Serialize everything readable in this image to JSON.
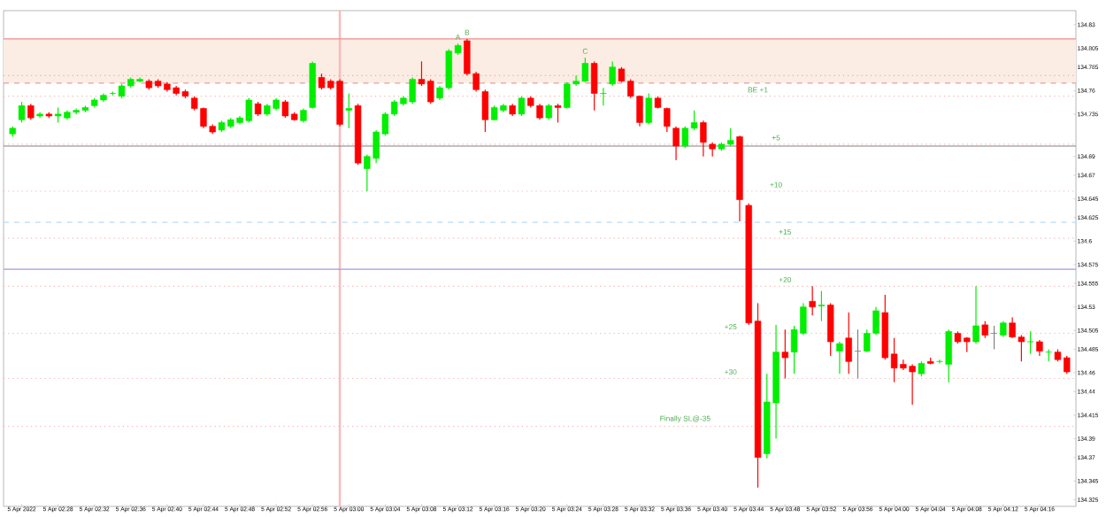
{
  "chart_data": {
    "type": "candlestick",
    "x": [
      "2022-04-05T02:23",
      "2022-04-05T02:24",
      "2022-04-05T02:25",
      "2022-04-05T02:26",
      "2022-04-05T02:27",
      "2022-04-05T02:28",
      "2022-04-05T02:29",
      "2022-04-05T02:30",
      "2022-04-05T02:31",
      "2022-04-05T02:32",
      "2022-04-05T02:33",
      "2022-04-05T02:34",
      "2022-04-05T02:35",
      "2022-04-05T02:36",
      "2022-04-05T02:37",
      "2022-04-05T02:38",
      "2022-04-05T02:39",
      "2022-04-05T02:40",
      "2022-04-05T02:41",
      "2022-04-05T02:42",
      "2022-04-05T02:43",
      "2022-04-05T02:44",
      "2022-04-05T02:45",
      "2022-04-05T02:46",
      "2022-04-05T02:47",
      "2022-04-05T02:48",
      "2022-04-05T02:49",
      "2022-04-05T02:50",
      "2022-04-05T02:51",
      "2022-04-05T02:52",
      "2022-04-05T02:53",
      "2022-04-05T02:54",
      "2022-04-05T02:55",
      "2022-04-05T02:56",
      "2022-04-05T02:57",
      "2022-04-05T02:58",
      "2022-04-05T02:59",
      "2022-04-05T03:00",
      "2022-04-05T03:01",
      "2022-04-05T03:02",
      "2022-04-05T03:03",
      "2022-04-05T03:04",
      "2022-04-05T03:05",
      "2022-04-05T03:06",
      "2022-04-05T03:07",
      "2022-04-05T03:08",
      "2022-04-05T03:09",
      "2022-04-05T03:10",
      "2022-04-05T03:11",
      "2022-04-05T03:12",
      "2022-04-05T03:13",
      "2022-04-05T03:14",
      "2022-04-05T03:15",
      "2022-04-05T03:16",
      "2022-04-05T03:17",
      "2022-04-05T03:18",
      "2022-04-05T03:19",
      "2022-04-05T03:20",
      "2022-04-05T03:21",
      "2022-04-05T03:22",
      "2022-04-05T03:23",
      "2022-04-05T03:24",
      "2022-04-05T03:25",
      "2022-04-05T03:26",
      "2022-04-05T03:27",
      "2022-04-05T03:28",
      "2022-04-05T03:29",
      "2022-04-05T03:30",
      "2022-04-05T03:31",
      "2022-04-05T03:32",
      "2022-04-05T03:33",
      "2022-04-05T03:34",
      "2022-04-05T03:35",
      "2022-04-05T03:36",
      "2022-04-05T03:37",
      "2022-04-05T03:38",
      "2022-04-05T03:39",
      "2022-04-05T03:40",
      "2022-04-05T03:41",
      "2022-04-05T03:42",
      "2022-04-05T03:43",
      "2022-04-05T03:44",
      "2022-04-05T03:45",
      "2022-04-05T03:46",
      "2022-04-05T03:47",
      "2022-04-05T03:48",
      "2022-04-05T03:49",
      "2022-04-05T03:50",
      "2022-04-05T03:51",
      "2022-04-05T03:52",
      "2022-04-05T03:53",
      "2022-04-05T03:54",
      "2022-04-05T03:55",
      "2022-04-05T03:56",
      "2022-04-05T03:57",
      "2022-04-05T03:58",
      "2022-04-05T03:59",
      "2022-04-05T04:00",
      "2022-04-05T04:01",
      "2022-04-05T04:02",
      "2022-04-05T04:03",
      "2022-04-05T04:04",
      "2022-04-05T04:05",
      "2022-04-05T04:06",
      "2022-04-05T04:07",
      "2022-04-05T04:08",
      "2022-04-05T04:09",
      "2022-04-05T04:10",
      "2022-04-05T04:11",
      "2022-04-05T04:12",
      "2022-04-05T04:13",
      "2022-04-05T04:14",
      "2022-04-05T04:15",
      "2022-04-05T04:16",
      "2022-04-05T04:17",
      "2022-04-05T04:18",
      "2022-04-05T04:19"
    ],
    "ohlc": [
      [
        134.714,
        134.722,
        134.711,
        134.72
      ],
      [
        134.729,
        134.748,
        134.726,
        134.744
      ],
      [
        134.744,
        134.746,
        134.729,
        134.731
      ],
      [
        134.733,
        134.737,
        134.731,
        134.735
      ],
      [
        134.735,
        134.737,
        134.731,
        134.733
      ],
      [
        134.733,
        134.742,
        134.726,
        134.735
      ],
      [
        134.731,
        134.739,
        134.729,
        134.737
      ],
      [
        134.737,
        134.741,
        134.735,
        134.739
      ],
      [
        134.739,
        134.744,
        134.737,
        134.742
      ],
      [
        134.744,
        134.752,
        134.742,
        134.75
      ],
      [
        134.75,
        134.757,
        134.748,
        134.755
      ],
      [
        134.757,
        134.759,
        134.755,
        134.757
      ],
      [
        134.754,
        134.767,
        134.752,
        134.765
      ],
      [
        134.765,
        134.774,
        134.763,
        134.772
      ],
      [
        134.77,
        134.774,
        134.769,
        134.772
      ],
      [
        134.77,
        134.772,
        134.761,
        134.763
      ],
      [
        134.77,
        134.772,
        134.763,
        134.765
      ],
      [
        134.767,
        134.769,
        134.759,
        134.761
      ],
      [
        134.763,
        134.765,
        134.755,
        134.757
      ],
      [
        134.759,
        134.761,
        134.752,
        134.754
      ],
      [
        134.752,
        134.754,
        134.739,
        134.741
      ],
      [
        134.741,
        134.742,
        134.72,
        134.722
      ],
      [
        134.722,
        134.724,
        134.714,
        134.716
      ],
      [
        134.718,
        134.728,
        134.716,
        134.726
      ],
      [
        134.722,
        134.731,
        134.72,
        134.729
      ],
      [
        134.726,
        134.733,
        134.724,
        134.731
      ],
      [
        134.728,
        134.752,
        134.726,
        134.75
      ],
      [
        134.746,
        134.748,
        134.733,
        134.735
      ],
      [
        134.735,
        134.746,
        134.733,
        134.744
      ],
      [
        134.741,
        134.752,
        134.739,
        134.75
      ],
      [
        134.748,
        134.75,
        134.731,
        134.733
      ],
      [
        134.735,
        134.737,
        134.728,
        134.729
      ],
      [
        134.728,
        134.741,
        134.726,
        134.739
      ],
      [
        134.742,
        134.791,
        134.741,
        134.789
      ],
      [
        134.774,
        134.778,
        134.761,
        134.763
      ],
      [
        134.77,
        134.772,
        134.761,
        134.763
      ],
      [
        134.77,
        134.772,
        134.722,
        134.724
      ],
      [
        134.739,
        134.757,
        134.72,
        134.741
      ],
      [
        134.744,
        134.746,
        134.681,
        134.683
      ],
      [
        134.677,
        134.692,
        134.653,
        134.69
      ],
      [
        134.688,
        134.718,
        134.683,
        134.716
      ],
      [
        134.714,
        134.737,
        134.712,
        134.735
      ],
      [
        134.735,
        134.75,
        134.733,
        134.748
      ],
      [
        134.746,
        134.754,
        134.744,
        134.752
      ],
      [
        134.748,
        134.774,
        134.746,
        134.772
      ],
      [
        134.772,
        134.791,
        134.765,
        134.767
      ],
      [
        134.77,
        134.772,
        134.746,
        134.748
      ],
      [
        134.752,
        134.765,
        134.75,
        134.763
      ],
      [
        134.763,
        134.804,
        134.761,
        134.802
      ],
      [
        134.8,
        134.81,
        134.798,
        134.808
      ],
      [
        134.813,
        134.815,
        134.776,
        134.778
      ],
      [
        134.778,
        134.78,
        134.759,
        134.761
      ],
      [
        134.759,
        134.761,
        134.716,
        134.729
      ],
      [
        134.729,
        134.744,
        134.728,
        134.742
      ],
      [
        134.739,
        134.746,
        134.737,
        134.744
      ],
      [
        134.744,
        134.746,
        134.733,
        134.735
      ],
      [
        134.735,
        134.754,
        134.733,
        134.752
      ],
      [
        134.752,
        134.754,
        134.742,
        134.744
      ],
      [
        134.744,
        134.746,
        134.729,
        134.731
      ],
      [
        134.731,
        134.746,
        134.729,
        134.744
      ],
      [
        134.744,
        134.746,
        134.726,
        134.742
      ],
      [
        134.742,
        134.769,
        134.741,
        134.767
      ],
      [
        134.767,
        134.776,
        134.765,
        134.77
      ],
      [
        134.77,
        134.795,
        134.769,
        134.789
      ],
      [
        134.789,
        134.791,
        134.739,
        134.757
      ],
      [
        134.757,
        134.763,
        134.744,
        134.757
      ],
      [
        134.767,
        134.791,
        134.765,
        134.785
      ],
      [
        134.783,
        134.785,
        134.769,
        134.77
      ],
      [
        134.77,
        134.772,
        134.752,
        134.754
      ],
      [
        134.754,
        134.755,
        134.722,
        134.726
      ],
      [
        134.726,
        134.757,
        134.724,
        134.752
      ],
      [
        134.752,
        134.754,
        134.741,
        134.742
      ],
      [
        134.741,
        134.742,
        134.716,
        134.722
      ],
      [
        134.72,
        134.722,
        134.686,
        134.701
      ],
      [
        134.701,
        134.722,
        134.699,
        134.72
      ],
      [
        134.72,
        134.739,
        134.718,
        134.726
      ],
      [
        134.726,
        134.728,
        134.69,
        134.705
      ],
      [
        134.703,
        134.705,
        134.69,
        134.698
      ],
      [
        134.698,
        134.705,
        134.696,
        134.703
      ],
      [
        134.703,
        134.72,
        134.701,
        134.707
      ],
      [
        134.711,
        134.712,
        134.621,
        134.644
      ],
      [
        134.638,
        134.64,
        134.511,
        134.513
      ],
      [
        134.515,
        134.534,
        134.338,
        134.37
      ],
      [
        134.374,
        134.459,
        134.369,
        134.429
      ],
      [
        134.428,
        134.511,
        134.39,
        134.482
      ],
      [
        134.482,
        134.506,
        134.454,
        134.476
      ],
      [
        134.482,
        134.51,
        134.459,
        134.506
      ],
      [
        134.502,
        134.534,
        134.5,
        134.53
      ],
      [
        134.536,
        134.552,
        134.521,
        134.53
      ],
      [
        134.531,
        134.547,
        134.515,
        134.532
      ],
      [
        134.532,
        134.534,
        134.478,
        134.493
      ],
      [
        134.483,
        134.493,
        134.459,
        134.491
      ],
      [
        134.497,
        134.524,
        134.459,
        134.472
      ],
      [
        134.483,
        134.506,
        134.454,
        134.483
      ],
      [
        134.483,
        134.506,
        134.482,
        134.502
      ],
      [
        134.502,
        134.53,
        134.5,
        134.526
      ],
      [
        134.524,
        134.543,
        134.474,
        134.476
      ],
      [
        134.48,
        134.497,
        134.45,
        134.465
      ],
      [
        134.469,
        134.474,
        134.463,
        134.465
      ],
      [
        134.467,
        134.469,
        134.426,
        134.461
      ],
      [
        134.459,
        134.472,
        134.456,
        134.47
      ],
      [
        134.472,
        134.476,
        134.469,
        134.47
      ],
      [
        134.472,
        134.474,
        134.47,
        134.472
      ],
      [
        134.469,
        134.506,
        134.45,
        134.504
      ],
      [
        134.502,
        134.504,
        134.491,
        134.493
      ],
      [
        134.497,
        134.498,
        134.482,
        134.493
      ],
      [
        134.493,
        134.552,
        134.491,
        134.51
      ],
      [
        134.511,
        134.515,
        134.497,
        134.5
      ],
      [
        134.502,
        134.51,
        134.485,
        134.502
      ],
      [
        134.5,
        134.515,
        134.498,
        134.513
      ],
      [
        134.513,
        134.519,
        134.497,
        134.498
      ],
      [
        134.498,
        134.5,
        134.472,
        134.493
      ],
      [
        134.493,
        134.504,
        134.48,
        134.493
      ],
      [
        134.493,
        134.495,
        134.478,
        134.483
      ],
      [
        134.482,
        134.485,
        134.472,
        134.482
      ],
      [
        134.482,
        134.485,
        134.472,
        134.474
      ],
      [
        134.476,
        134.478,
        134.459,
        134.461
      ]
    ],
    "colors": [
      "#00ee00",
      "#00ee00",
      "#ff0000",
      "#00ee00",
      "#ff0000",
      "#00ee00",
      "#00ee00",
      "#00ee00",
      "#00ee00",
      "#00ee00",
      "#00ee00",
      "#00ee00",
      "#00ee00",
      "#00ee00",
      "#00ee00",
      "#ff0000",
      "#ff0000",
      "#ff0000",
      "#ff0000",
      "#ff0000",
      "#ff0000",
      "#ff0000",
      "#ff0000",
      "#00ee00",
      "#00ee00",
      "#00ee00",
      "#00ee00",
      "#ff0000",
      "#00ee00",
      "#00ee00",
      "#ff0000",
      "#ff0000",
      "#00ee00",
      "#00ee00",
      "#ff0000",
      "#ff0000",
      "#ff0000",
      "#00ee00",
      "#ff0000",
      "#00ee00",
      "#00ee00",
      "#00ee00",
      "#00ee00",
      "#00ee00",
      "#00ee00",
      "#ff0000",
      "#ff0000",
      "#00ee00",
      "#00ee00",
      "#00ee00",
      "#ff0000",
      "#ff0000",
      "#ff0000",
      "#00ee00",
      "#00ee00",
      "#ff0000",
      "#00ee00",
      "#ff0000",
      "#ff0000",
      "#00ee00",
      "#ff0000",
      "#00ee00",
      "#00ee00",
      "#00ee00",
      "#ff0000",
      "#00ee00",
      "#00ee00",
      "#ff0000",
      "#ff0000",
      "#ff0000",
      "#00ee00",
      "#ff0000",
      "#ff0000",
      "#ff0000",
      "#00ee00",
      "#00ee00",
      "#ff0000",
      "#ff0000",
      "#00ee00",
      "#00ee00",
      "#ff0000",
      "#ff0000",
      "#ff0000",
      "#00ee00",
      "#00ee00",
      "#ff0000",
      "#00ee00",
      "#00ee00",
      "#ff0000",
      "#00ee00",
      "#ff0000",
      "#00ee00",
      "#ff0000",
      "#808080",
      "#00ee00",
      "#00ee00",
      "#ff0000",
      "#ff0000",
      "#ff0000",
      "#ff0000",
      "#00ee00",
      "#ff0000",
      "#00ee00",
      "#00ee00",
      "#ff0000",
      "#ff0000",
      "#00ee00",
      "#ff0000",
      "#808080",
      "#00ee00",
      "#ff0000",
      "#ff0000",
      "#00ee00",
      "#ff0000",
      "#00ee00",
      "#ff0000",
      "#ff0000"
    ],
    "xlim": [
      "2022-04-05T02:22",
      "2022-04-05T04:20"
    ],
    "xticks": [
      {
        "value": "2022-04-05T02:24",
        "label": "5 Apr 2022"
      },
      {
        "value": "2022-04-05T02:28",
        "label": "5 Apr 02:28"
      },
      {
        "value": "2022-04-05T02:32",
        "label": "5 Apr 02:32"
      },
      {
        "value": "2022-04-05T02:36",
        "label": "5 Apr 02:36"
      },
      {
        "value": "2022-04-05T02:40",
        "label": "5 Apr 02:40"
      },
      {
        "value": "2022-04-05T02:44",
        "label": "5 Apr 02:44"
      },
      {
        "value": "2022-04-05T02:48",
        "label": "5 Apr 02:48"
      },
      {
        "value": "2022-04-05T02:52",
        "label": "5 Apr 02:52"
      },
      {
        "value": "2022-04-05T02:56",
        "label": "5 Apr 02:56"
      },
      {
        "value": "2022-04-05T03:00",
        "label": "5 Apr 03:00"
      },
      {
        "value": "2022-04-05T03:04",
        "label": "5 Apr 03:04"
      },
      {
        "value": "2022-04-05T03:08",
        "label": "5 Apr 03:08"
      },
      {
        "value": "2022-04-05T03:12",
        "label": "5 Apr 03:12"
      },
      {
        "value": "2022-04-05T03:16",
        "label": "5 Apr 03:16"
      },
      {
        "value": "2022-04-05T03:20",
        "label": "5 Apr 03:20"
      },
      {
        "value": "2022-04-05T03:24",
        "label": "5 Apr 03:24"
      },
      {
        "value": "2022-04-05T03:28",
        "label": "5 Apr 03:28"
      },
      {
        "value": "2022-04-05T03:32",
        "label": "5 Apr 03:32"
      },
      {
        "value": "2022-04-05T03:36",
        "label": "5 Apr 03:36"
      },
      {
        "value": "2022-04-05T03:40",
        "label": "5 Apr 03:40"
      },
      {
        "value": "2022-04-05T03:44",
        "label": "5 Apr 03:44"
      },
      {
        "value": "2022-04-05T03:48",
        "label": "5 Apr 03:48"
      },
      {
        "value": "2022-04-05T03:52",
        "label": "5 Apr 03:52"
      },
      {
        "value": "2022-04-05T03:56",
        "label": "5 Apr 03:56"
      },
      {
        "value": "2022-04-05T04:00",
        "label": "5 Apr 04:00"
      },
      {
        "value": "2022-04-05T04:04",
        "label": "5 Apr 04:04"
      },
      {
        "value": "2022-04-05T04:08",
        "label": "5 Apr 04:08"
      },
      {
        "value": "2022-04-05T04:12",
        "label": "5 Apr 04:12"
      },
      {
        "value": "2022-04-05T04:16",
        "label": "5 Apr 04:16"
      }
    ],
    "ylim": [
      134.318,
      134.845
    ],
    "yticks": [
      134.83,
      134.805,
      134.785,
      134.76,
      134.735,
      134.69,
      134.67,
      134.645,
      134.625,
      134.6,
      134.575,
      134.555,
      134.53,
      134.505,
      134.485,
      134.46,
      134.44,
      134.415,
      134.39,
      134.37,
      134.345,
      134.325
    ],
    "bands": [
      {
        "axis": "y",
        "from": 134.768,
        "to": 134.815,
        "color": "#fbede3"
      }
    ],
    "ref_lines": [
      {
        "axis": "x",
        "value": "2022-04-05T02:59",
        "color": "#ffb8b8"
      },
      {
        "axis": "y",
        "value": 134.815,
        "color": "#f08c8c"
      },
      {
        "axis": "y",
        "value": 134.776,
        "color": "#f0a8a8",
        "line_style": "dotted"
      },
      {
        "axis": "y",
        "value": 134.768,
        "color": "#e0a0a0",
        "line_style": "dashed"
      },
      {
        "axis": "y",
        "value": 134.701,
        "color": "#808080"
      },
      {
        "axis": "y",
        "value": 134.62,
        "color": "#b8dcf8",
        "line_style": "dashed"
      },
      {
        "axis": "y",
        "value": 134.57,
        "color": "#9c9ce0"
      },
      {
        "axis": "y",
        "value": 134.754,
        "color": "#f4b4b4",
        "line_style": "dotted"
      },
      {
        "axis": "y",
        "value": 134.703,
        "color": "#f4b4b4",
        "line_style": "dotted"
      },
      {
        "axis": "y",
        "value": 134.653,
        "color": "#f4b4b4",
        "line_style": "dotted"
      },
      {
        "axis": "y",
        "value": 134.603,
        "color": "#f4b4b4",
        "line_style": "dotted"
      },
      {
        "axis": "y",
        "value": 134.552,
        "color": "#f4b4b4",
        "line_style": "dotted"
      },
      {
        "axis": "y",
        "value": 134.502,
        "color": "#f4b4b4",
        "line_style": "dotted"
      },
      {
        "axis": "y",
        "value": 134.454,
        "color": "#f4b4b4",
        "line_style": "dotted"
      },
      {
        "axis": "y",
        "value": 134.403,
        "color": "#f4b4b4",
        "line_style": "dotted"
      }
    ],
    "annotations": [
      {
        "text": "A",
        "x": "2022-04-05T03:12",
        "y": 134.81
      },
      {
        "text": "B",
        "x": "2022-04-05T03:13",
        "y": 134.815
      },
      {
        "text": "C",
        "x": "2022-04-05T03:26",
        "y": 134.795
      },
      {
        "text": "BE +1",
        "x": "2022-04-05T03:45",
        "y": 134.754
      },
      {
        "text": "+5",
        "x": "2022-04-05T03:47",
        "y": 134.703
      },
      {
        "text": "+10",
        "x": "2022-04-05T03:47",
        "y": 134.653
      },
      {
        "text": "+15",
        "x": "2022-04-05T03:48",
        "y": 134.603
      },
      {
        "text": "+20",
        "x": "2022-04-05T03:48",
        "y": 134.552
      },
      {
        "text": "+25",
        "x": "2022-04-05T03:42",
        "y": 134.502
      },
      {
        "text": "+30",
        "x": "2022-04-05T03:42",
        "y": 134.454
      },
      {
        "text": "Finally SL@-35",
        "x": "2022-04-05T03:37",
        "y": 134.403
      }
    ]
  }
}
